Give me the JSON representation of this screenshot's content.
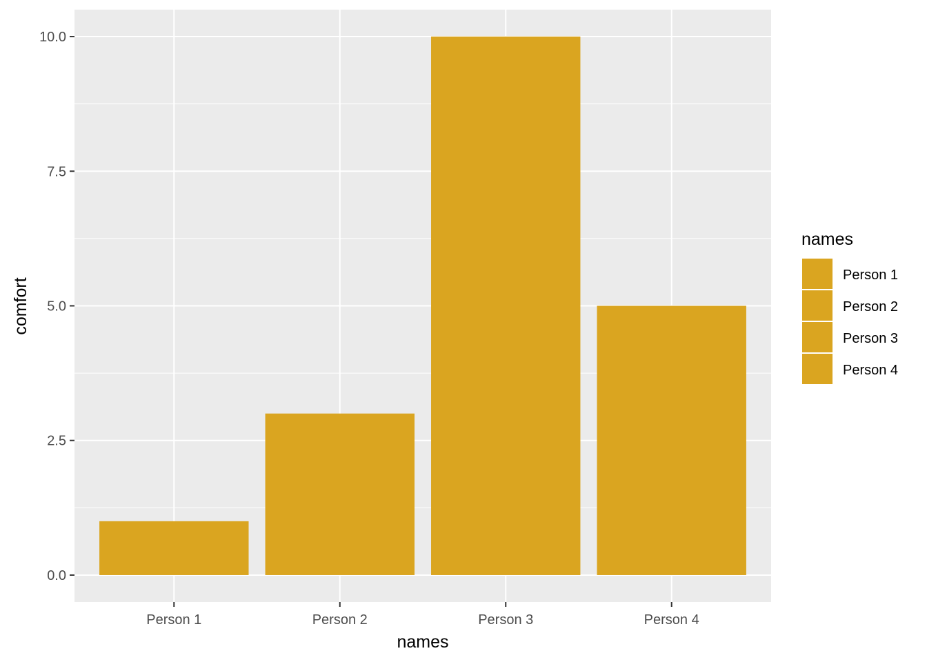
{
  "chart_data": {
    "type": "bar",
    "categories": [
      "Person 1",
      "Person 2",
      "Person 3",
      "Person 4"
    ],
    "values": [
      1,
      3,
      10,
      5
    ],
    "xlabel": "names",
    "ylabel": "comfort",
    "ylim": [
      -0.5,
      10.5
    ],
    "yticks": [
      0.0,
      2.5,
      5.0,
      7.5,
      10.0
    ],
    "ytick_labels": [
      "0.0",
      "2.5",
      "5.0",
      "7.5",
      "10.0"
    ],
    "grid": true,
    "legend": {
      "title": "names",
      "position": "right",
      "entries": [
        "Person 1",
        "Person 2",
        "Person 3",
        "Person 4"
      ]
    },
    "colors": {
      "bar": "#DAA520",
      "panel": "#EBEBEB",
      "grid": "#FFFFFF"
    }
  }
}
